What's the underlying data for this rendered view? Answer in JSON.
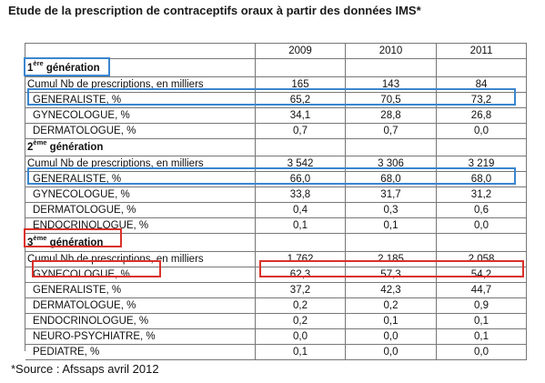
{
  "title": "Etude de la prescription de contraceptifs oraux à partir des données IMS*",
  "source": "*Source : Afssaps avril 2012",
  "years": [
    "2009",
    "2010",
    "2011"
  ],
  "gen1": {
    "num": "1",
    "sup": "ère",
    "word": "génération",
    "rows": [
      {
        "label": "Cumul Nb de prescriptions, en milliers",
        "v": [
          "165",
          "143",
          "84"
        ]
      },
      {
        "label": "GENERALISTE, %",
        "v": [
          "65,2",
          "70,5",
          "73,2"
        ]
      },
      {
        "label": "GYNECOLOGUE, %",
        "v": [
          "34,1",
          "28,8",
          "26,8"
        ]
      },
      {
        "label": "DERMATOLOGUE, %",
        "v": [
          "0,7",
          "0,7",
          "0,0"
        ]
      }
    ]
  },
  "gen2": {
    "num": "2",
    "sup": "ème",
    "word": "génération",
    "rows": [
      {
        "label": "Cumul Nb de prescriptions, en milliers",
        "v": [
          "3 542",
          "3 306",
          "3 219"
        ]
      },
      {
        "label": "GENERALISTE, %",
        "v": [
          "66,0",
          "68,0",
          "68,0"
        ]
      },
      {
        "label": "GYNECOLOGUE, %",
        "v": [
          "33,8",
          "31,7",
          "31,2"
        ]
      },
      {
        "label": "DERMATOLOGUE, %",
        "v": [
          "0,4",
          "0,3",
          "0,6"
        ]
      },
      {
        "label": "ENDOCRINOLOGUE, %",
        "v": [
          "0,1",
          "0,1",
          "0,0"
        ]
      }
    ]
  },
  "gen3": {
    "num": "3",
    "sup": "ème",
    "word": "génération",
    "rows": [
      {
        "label": "Cumul Nb de prescriptions, en milliers",
        "v": [
          "1 762",
          "2 185",
          "2 058"
        ]
      },
      {
        "label": "GYNECOLOGUE, %",
        "v": [
          "62,3",
          "57,3",
          "54,2"
        ]
      },
      {
        "label": "GENERALISTE, %",
        "v": [
          "37,2",
          "42,3",
          "44,7"
        ]
      },
      {
        "label": "DERMATOLOGUE, %",
        "v": [
          "0,2",
          "0,2",
          "0,9"
        ]
      },
      {
        "label": "ENDOCRINOLOGUE, %",
        "v": [
          "0,2",
          "0,1",
          "0,1"
        ]
      },
      {
        "label": "NEURO-PSYCHIATRE, %",
        "v": [
          "0,0",
          "0,0",
          "0,1"
        ]
      },
      {
        "label": "PEDIATRE, %",
        "v": [
          "0,1",
          "0,0",
          "0,0"
        ]
      }
    ]
  }
}
